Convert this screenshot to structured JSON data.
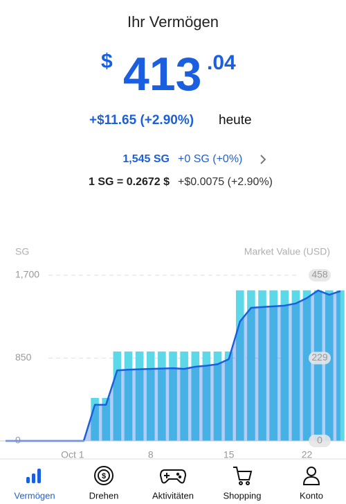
{
  "header": {
    "title": "Ihr Vermögen"
  },
  "balance": {
    "currency": "$",
    "whole": "413",
    "fraction": ".04"
  },
  "today_change": {
    "amount": "+$11.65 (+2.90%)",
    "label": "heute"
  },
  "sg_row": {
    "balance": "1,545 SG",
    "change": "+0 SG (+0%)"
  },
  "rate_row": {
    "rate": "1 SG = 0.2672 $",
    "change": "+$0.0075 (+2.90%)"
  },
  "chart_data": {
    "type": "bar",
    "ylabel": "SG",
    "y2label": "Market Value (USD)",
    "categories": [
      null,
      null,
      null,
      null,
      null,
      null,
      "Oct 1",
      null,
      null,
      null,
      null,
      null,
      null,
      "8",
      null,
      null,
      null,
      null,
      null,
      null,
      "15",
      null,
      null,
      null,
      null,
      null,
      null,
      "22",
      null,
      null,
      null
    ],
    "series": [
      {
        "type": "bar",
        "color": "#5cd8e8",
        "values": [
          null,
          null,
          null,
          null,
          null,
          null,
          null,
          null,
          441,
          441,
          917,
          917,
          917,
          917,
          917,
          917,
          917,
          917,
          917,
          917,
          917,
          1545,
          1545,
          1545,
          1545,
          1545,
          1545,
          1545,
          1545,
          1545,
          1545
        ]
      },
      {
        "type": "line",
        "color": "#1a5fe0",
        "axis": "y2",
        "values": [
          0,
          0,
          0,
          0,
          0,
          0,
          0,
          0,
          100,
          100,
          195,
          197,
          198,
          199,
          200,
          201,
          199,
          205,
          208,
          212,
          226,
          330,
          368,
          370,
          372,
          374,
          380,
          395,
          416,
          404,
          414
        ]
      }
    ],
    "ylim": [
      0,
      1700
    ],
    "yticks": [
      0,
      850,
      {
        "value": 1700,
        "label": "1,700"
      }
    ],
    "y2lim": [
      0,
      458
    ],
    "y2ticks": [
      0,
      229,
      458
    ],
    "grid": true
  },
  "tab_bar": {
    "active": 0,
    "active_color": "#1a5fe0",
    "items": [
      "Vermögen",
      "Drehen",
      "Aktivitäten",
      "Shopping",
      "Konto"
    ]
  }
}
